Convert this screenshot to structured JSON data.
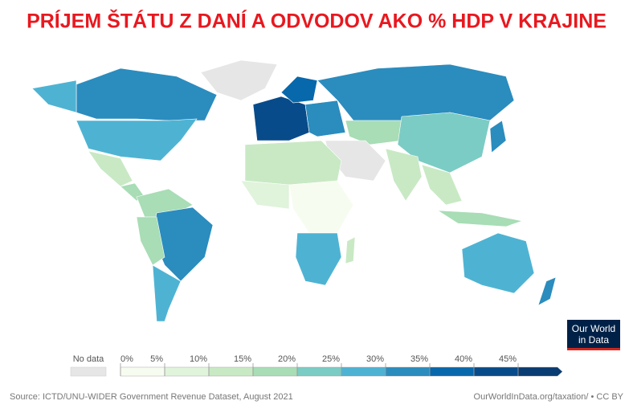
{
  "title": "PRÍJEM ŠTÁTU Z DANÍ A ODVODOV AKO % HDP V KRAJINE",
  "legend": {
    "no_data": "No data",
    "no_data_color": "#e6e6e6",
    "ticks": [
      {
        "value": 0,
        "label": "0%"
      },
      {
        "value": 5,
        "label": "5%"
      },
      {
        "value": 10,
        "label": "10%"
      },
      {
        "value": 15,
        "label": "15%"
      },
      {
        "value": 20,
        "label": "20%"
      },
      {
        "value": 25,
        "label": "25%"
      },
      {
        "value": 30,
        "label": "30%"
      },
      {
        "value": 35,
        "label": "35%"
      },
      {
        "value": 40,
        "label": "40%"
      },
      {
        "value": 45,
        "label": "45%"
      }
    ],
    "colors": [
      "#f7fcf0",
      "#e0f3db",
      "#c8e9c4",
      "#a8ddb5",
      "#7bccc4",
      "#4eb3d3",
      "#2b8cbe",
      "#0868ac",
      "#084b8a",
      "#083c72"
    ]
  },
  "source": "Source: ICTD/UNU-WIDER Government Revenue Dataset, August 2021",
  "credit": "OurWorldInData.org/taxation/ • CC BY",
  "logo": [
    "Our World",
    "in Data"
  ]
}
